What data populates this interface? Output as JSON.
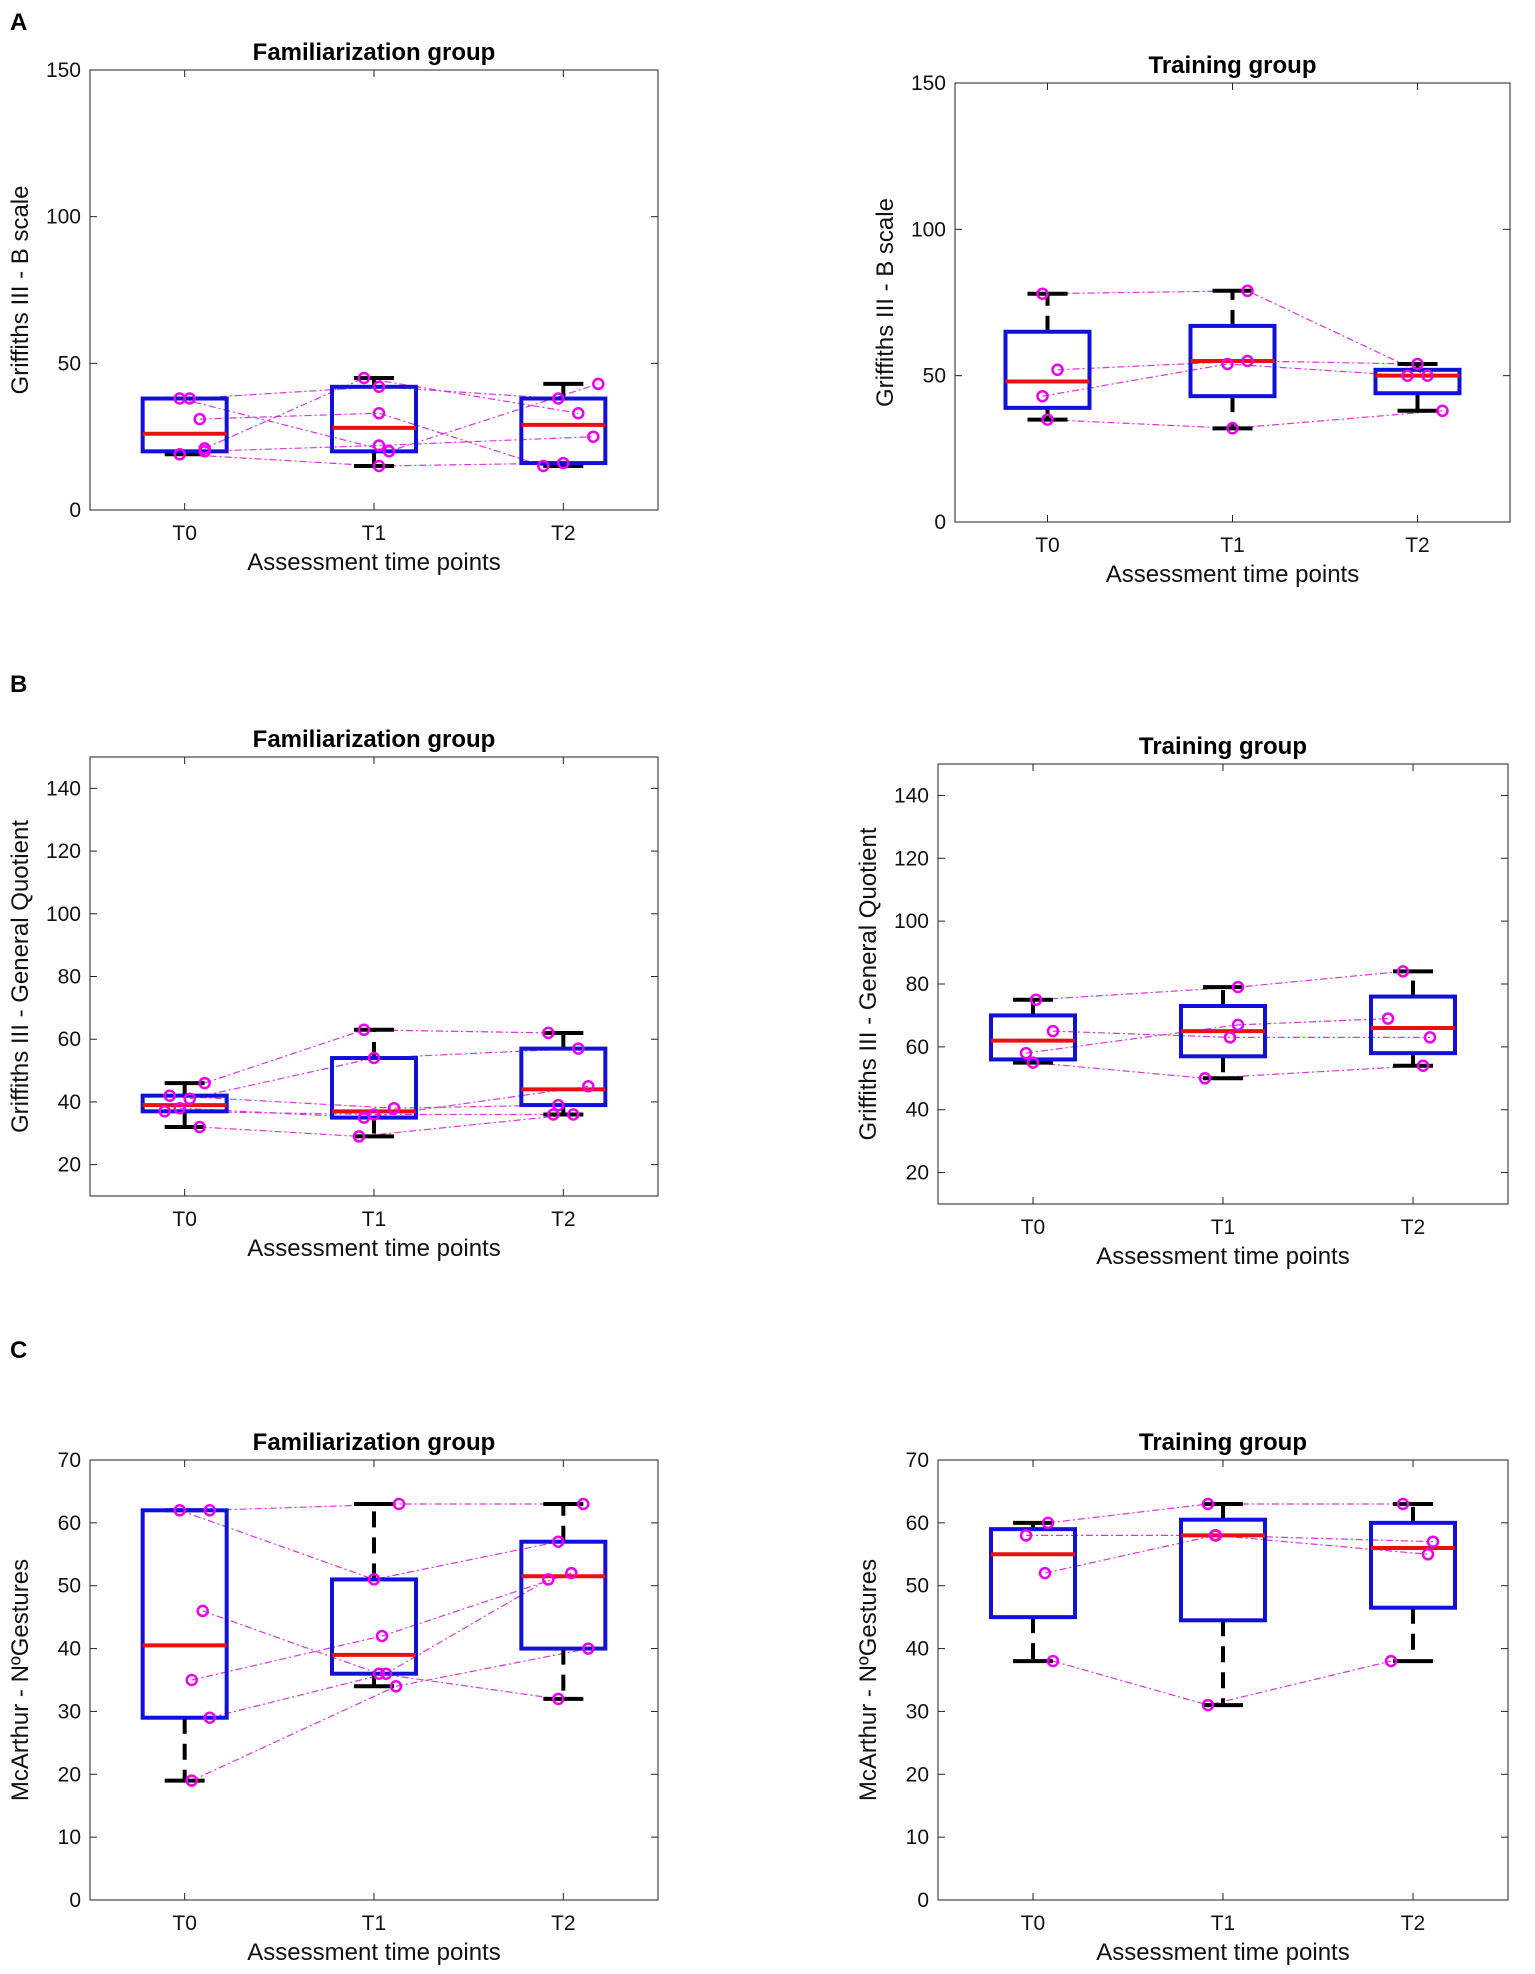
{
  "panel_labels": [
    "A",
    "B",
    "C"
  ],
  "colors": {
    "box": "#1010d8",
    "median": "#e81010",
    "whisker": "#000000",
    "point": "#ee00ee",
    "line": "#dd33dd",
    "axis": "#222222"
  },
  "chart_data": [
    {
      "type": "box",
      "panel": "A",
      "title": "Familiarization group",
      "xlabel": "Assessment time points",
      "ylabel": "Griffiths III - B scale",
      "categories": [
        "T0",
        "T1",
        "T2"
      ],
      "ylim": [
        0,
        150
      ],
      "yticks": [
        0,
        50,
        100,
        150
      ],
      "boxes": [
        {
          "q1": 20,
          "median": 26,
          "q3": 38,
          "wlo": 19,
          "whi": 38
        },
        {
          "q1": 20,
          "median": 28,
          "q3": 42,
          "wlo": 15,
          "whi": 45
        },
        {
          "q1": 16,
          "median": 29,
          "q3": 38,
          "wlo": 15,
          "whi": 43
        }
      ],
      "subjects": [
        [
          38,
          42,
          38
        ],
        [
          31,
          33,
          15
        ],
        [
          21,
          45,
          33
        ],
        [
          19,
          15,
          16
        ],
        [
          38,
          20,
          43
        ],
        [
          20,
          22,
          25
        ]
      ],
      "jitter": [
        [
          0.05,
          0.05,
          -0.05
        ],
        [
          0.15,
          0.05,
          -0.2
        ],
        [
          0.2,
          -0.1,
          0.15
        ],
        [
          -0.05,
          0.05,
          0.0
        ],
        [
          -0.05,
          0.15,
          0.35
        ],
        [
          0.2,
          0.05,
          0.3
        ]
      ]
    },
    {
      "type": "box",
      "panel": "A",
      "title": "Training group",
      "xlabel": "Assessment time points",
      "ylabel": "Griffiths III - B scale",
      "categories": [
        "T0",
        "T1",
        "T2"
      ],
      "ylim": [
        0,
        150
      ],
      "yticks": [
        0,
        50,
        100,
        150
      ],
      "boxes": [
        {
          "q1": 39,
          "median": 48,
          "q3": 65,
          "wlo": 35,
          "whi": 78
        },
        {
          "q1": 43,
          "median": 55,
          "q3": 67,
          "wlo": 32,
          "whi": 79
        },
        {
          "q1": 44,
          "median": 50,
          "q3": 52,
          "wlo": 38,
          "whi": 54
        }
      ],
      "subjects": [
        [
          78,
          79,
          50
        ],
        [
          52,
          55,
          54
        ],
        [
          43,
          54,
          50
        ],
        [
          35,
          32,
          38
        ]
      ],
      "jitter": [
        [
          -0.05,
          0.15,
          0.1
        ],
        [
          0.1,
          0.15,
          0.0
        ],
        [
          -0.05,
          -0.05,
          -0.1
        ],
        [
          0.0,
          0.0,
          0.25
        ]
      ]
    },
    {
      "type": "box",
      "panel": "B",
      "title": "Familiarization group",
      "xlabel": "Assessment time points",
      "ylabel": "Griffiths III - General Quotient",
      "categories": [
        "T0",
        "T1",
        "T2"
      ],
      "ylim": [
        10,
        150
      ],
      "yticks": [
        20,
        40,
        60,
        80,
        100,
        120,
        140
      ],
      "boxes": [
        {
          "q1": 37,
          "median": 39,
          "q3": 42,
          "wlo": 32,
          "whi": 46
        },
        {
          "q1": 35,
          "median": 37,
          "q3": 54,
          "wlo": 29,
          "whi": 63
        },
        {
          "q1": 39,
          "median": 44,
          "q3": 57,
          "wlo": 36,
          "whi": 62
        }
      ],
      "subjects": [
        [
          46,
          63,
          62
        ],
        [
          41,
          54,
          57
        ],
        [
          42,
          38,
          39
        ],
        [
          38,
          35,
          45
        ],
        [
          37,
          36,
          36
        ],
        [
          32,
          29,
          36
        ]
      ],
      "jitter": [
        [
          0.2,
          -0.1,
          -0.15
        ],
        [
          0.05,
          0.0,
          0.15
        ],
        [
          -0.15,
          0.2,
          -0.05
        ],
        [
          -0.05,
          -0.1,
          0.25
        ],
        [
          -0.2,
          0.0,
          -0.1
        ],
        [
          0.15,
          -0.15,
          0.1
        ]
      ]
    },
    {
      "type": "box",
      "panel": "B",
      "title": "Training group",
      "xlabel": "Assessment time points",
      "ylabel": "Griffiths III - General Quotient",
      "categories": [
        "T0",
        "T1",
        "T2"
      ],
      "ylim": [
        10,
        150
      ],
      "yticks": [
        20,
        40,
        60,
        80,
        100,
        120,
        140
      ],
      "boxes": [
        {
          "q1": 56,
          "median": 62,
          "q3": 70,
          "wlo": 55,
          "whi": 75
        },
        {
          "q1": 57,
          "median": 65,
          "q3": 73,
          "wlo": 50,
          "whi": 79
        },
        {
          "q1": 58,
          "median": 66,
          "q3": 76,
          "wlo": 54,
          "whi": 84
        }
      ],
      "subjects": [
        [
          75,
          79,
          84
        ],
        [
          65,
          63,
          63
        ],
        [
          58,
          67,
          69
        ],
        [
          55,
          50,
          54
        ]
      ],
      "jitter": [
        [
          0.03,
          0.15,
          -0.1
        ],
        [
          0.2,
          0.07,
          0.17
        ],
        [
          -0.07,
          0.15,
          -0.25
        ],
        [
          0.0,
          -0.18,
          0.1
        ]
      ]
    },
    {
      "type": "box",
      "panel": "C",
      "title": "Familiarization group",
      "xlabel": "Assessment time points",
      "ylabel": "McArthur - NºGestures",
      "categories": [
        "T0",
        "T1",
        "T2"
      ],
      "ylim": [
        0,
        70
      ],
      "yticks": [
        0,
        10,
        20,
        30,
        40,
        50,
        60,
        70
      ],
      "boxes": [
        {
          "q1": 29,
          "median": 40.5,
          "q3": 62,
          "wlo": 19,
          "whi": 62
        },
        {
          "q1": 36,
          "median": 39,
          "q3": 51,
          "wlo": 34,
          "whi": 63
        },
        {
          "q1": 40,
          "median": 51.5,
          "q3": 57,
          "wlo": 32,
          "whi": 63
        }
      ],
      "subjects": [
        [
          62,
          51,
          57
        ],
        [
          62,
          63,
          63
        ],
        [
          46,
          36,
          32
        ],
        [
          35,
          42,
          52
        ],
        [
          29,
          36,
          51
        ],
        [
          19,
          34,
          40
        ]
      ],
      "jitter": [
        [
          -0.05,
          0.0,
          -0.05
        ],
        [
          0.25,
          0.25,
          0.2
        ],
        [
          0.18,
          0.05,
          -0.05
        ],
        [
          0.07,
          0.08,
          0.08
        ],
        [
          0.25,
          0.12,
          -0.15
        ],
        [
          0.07,
          0.22,
          0.25
        ]
      ]
    },
    {
      "type": "box",
      "panel": "C",
      "title": "Training group",
      "xlabel": "Assessment time points",
      "ylabel": "McArthur - NºGestures",
      "categories": [
        "T0",
        "T1",
        "T2"
      ],
      "ylim": [
        0,
        70
      ],
      "yticks": [
        0,
        10,
        20,
        30,
        40,
        50,
        60,
        70
      ],
      "boxes": [
        {
          "q1": 45,
          "median": 55,
          "q3": 59,
          "wlo": 38,
          "whi": 60
        },
        {
          "q1": 44.5,
          "median": 58,
          "q3": 60.5,
          "wlo": 31,
          "whi": 63
        },
        {
          "q1": 46.5,
          "median": 56,
          "q3": 60,
          "wlo": 38,
          "whi": 63
        }
      ],
      "subjects": [
        [
          60,
          63,
          63
        ],
        [
          58,
          58,
          57
        ],
        [
          52,
          58,
          55
        ],
        [
          38,
          31,
          38
        ]
      ],
      "jitter": [
        [
          0.15,
          -0.15,
          -0.1
        ],
        [
          -0.07,
          -0.07,
          0.2
        ],
        [
          0.12,
          -0.08,
          0.15
        ],
        [
          0.2,
          -0.15,
          -0.22
        ]
      ]
    }
  ]
}
